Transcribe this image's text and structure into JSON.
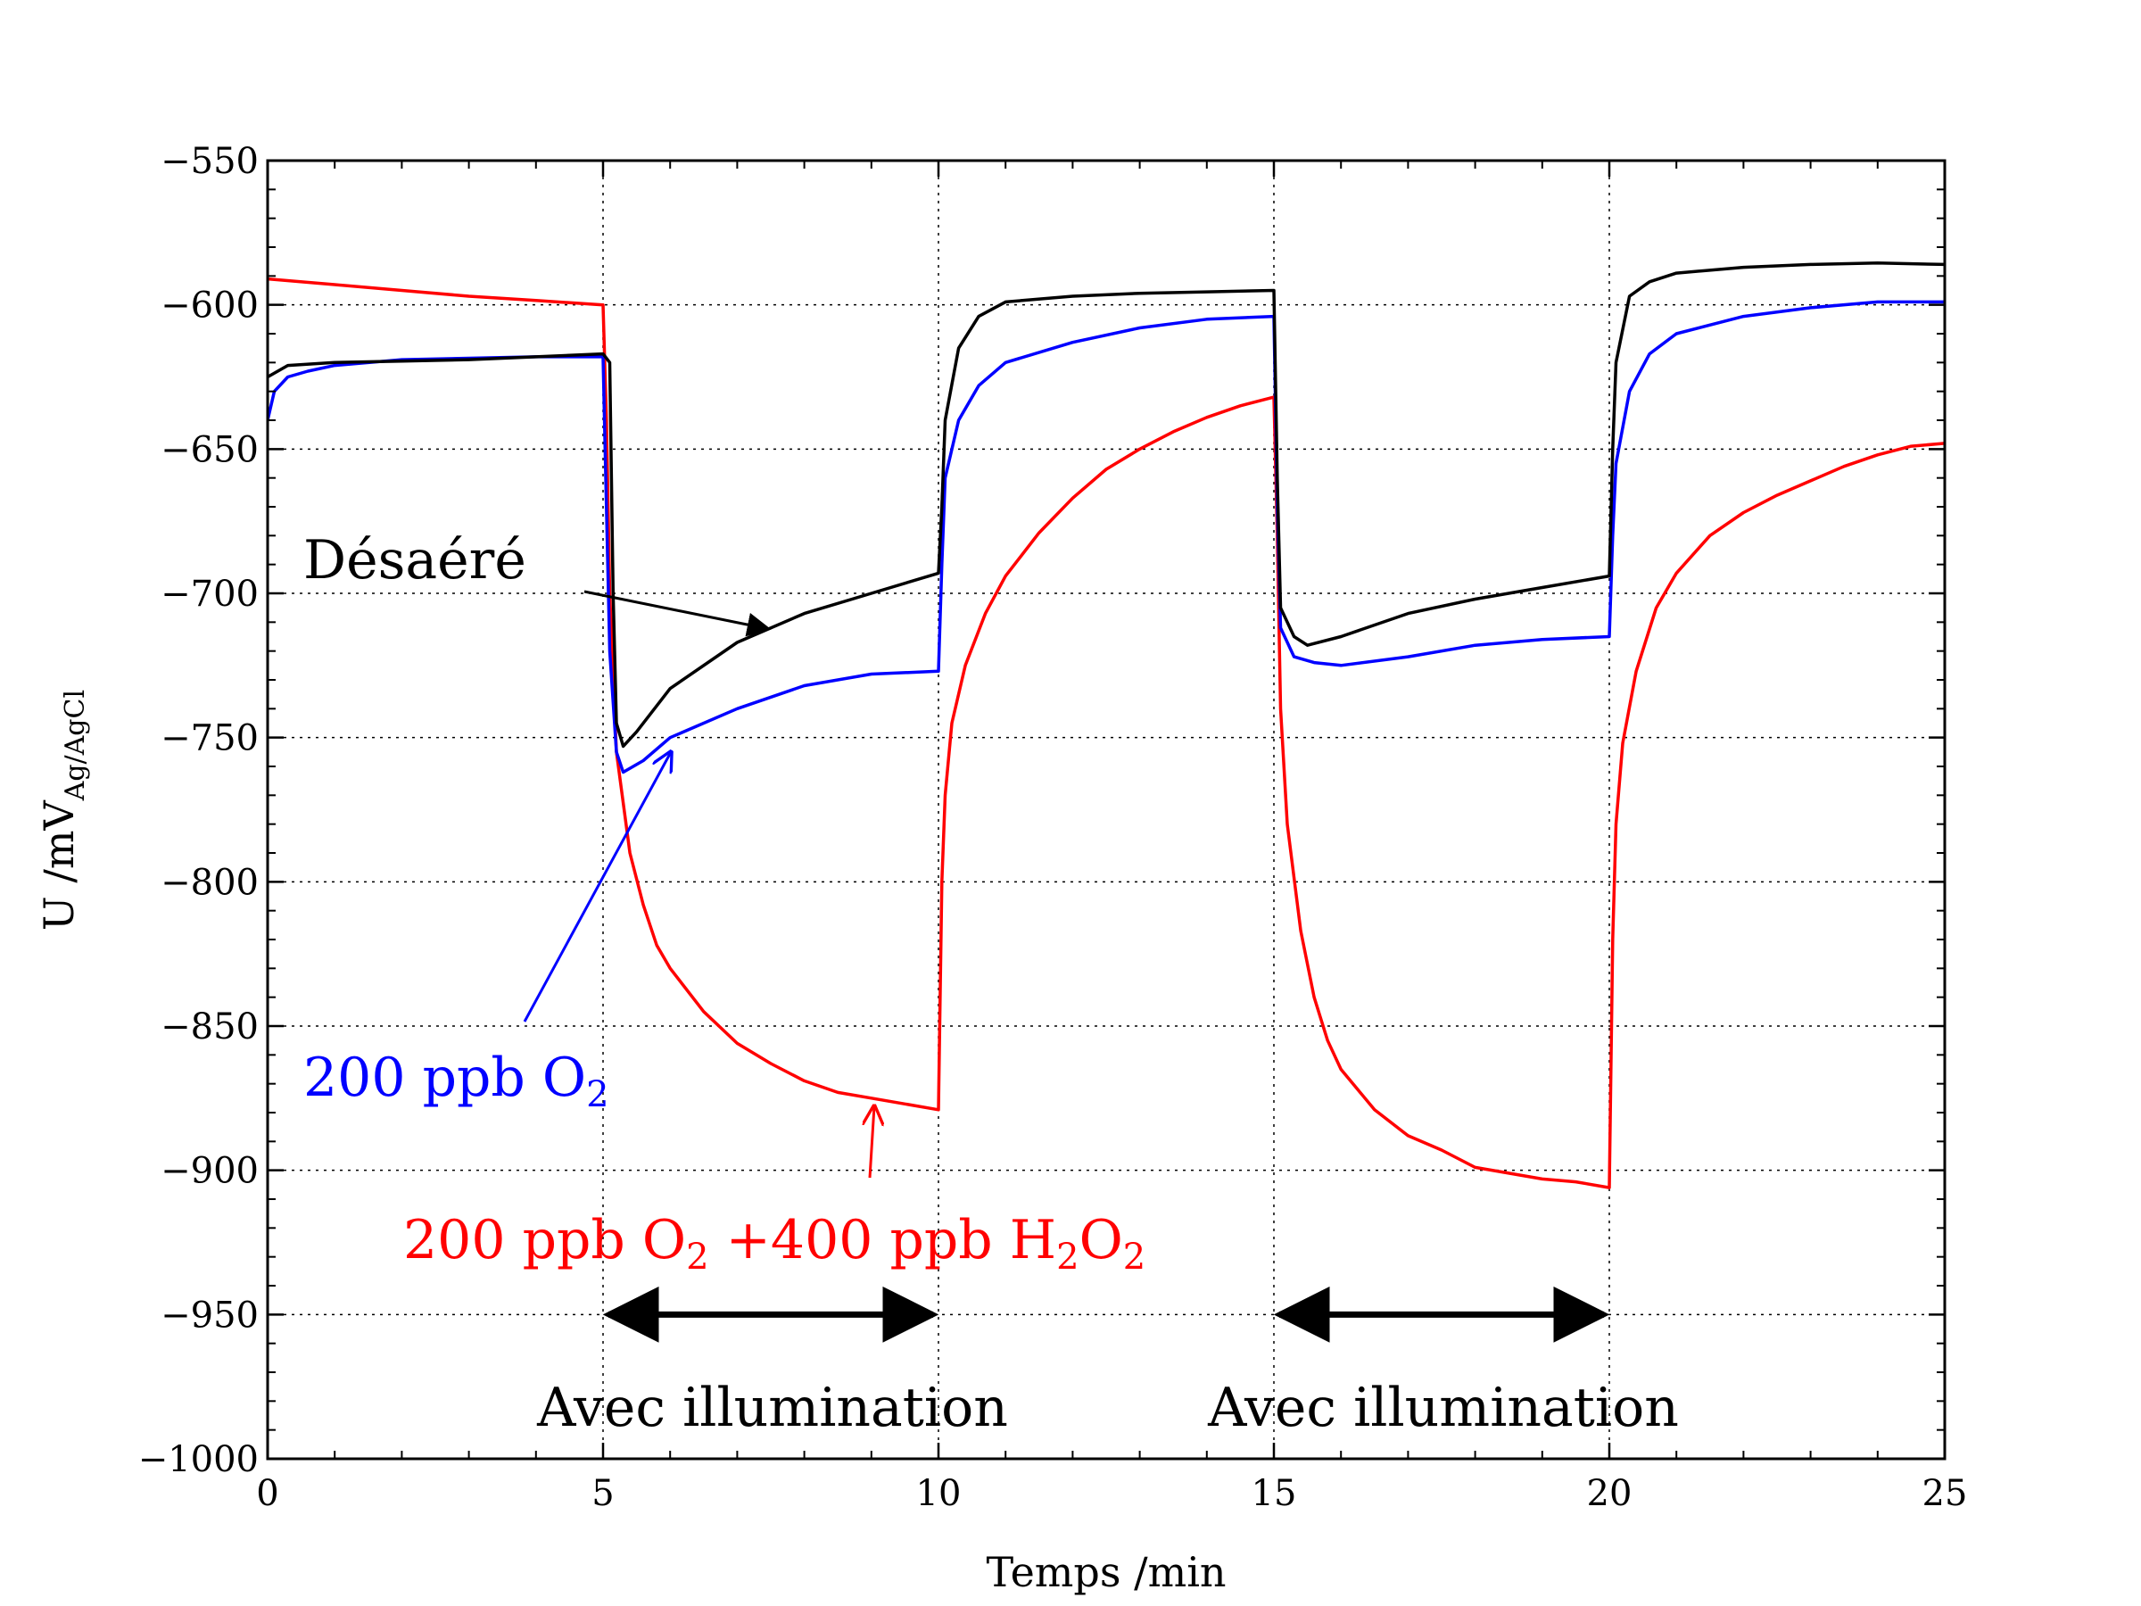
{
  "chart_data": {
    "type": "line",
    "xlabel": "Temps /min",
    "ylabel_main": "U /mV",
    "ylabel_sub": "Ag/AgCl",
    "xlim": [
      0,
      25
    ],
    "ylim": [
      -1000,
      -550
    ],
    "xticks": [
      0,
      5,
      10,
      15,
      20,
      25
    ],
    "xtick_labels": [
      "0",
      "5",
      "10",
      "15",
      "20",
      "25"
    ],
    "yticks": [
      -550,
      -600,
      -650,
      -700,
      -750,
      -800,
      -850,
      -900,
      -950,
      -1000
    ],
    "ytick_labels": [
      "−550",
      "−600",
      "−650",
      "−700",
      "−750",
      "−800",
      "−850",
      "−900",
      "−950",
      "−1000"
    ],
    "grid": true,
    "colors": {
      "desaere": "#000000",
      "o2": "#0000ff",
      "o2h2o2": "#ff0000",
      "arrow": "#000000"
    },
    "series": [
      {
        "name": "Désaéré",
        "color": "#000000",
        "x": [
          0,
          0.3,
          1,
          2,
          3,
          4,
          5,
          5.1,
          5.15,
          5.2,
          5.3,
          5.5,
          6,
          7,
          8,
          9,
          10,
          10.05,
          10.1,
          10.3,
          10.6,
          11,
          12,
          13,
          14,
          15,
          15.05,
          15.1,
          15.3,
          15.5,
          16,
          17,
          18,
          19,
          20,
          20.05,
          20.1,
          20.3,
          20.6,
          21,
          22,
          23,
          24,
          25
        ],
        "y": [
          -625,
          -621,
          -620,
          -619.5,
          -619,
          -618,
          -617,
          -620,
          -700,
          -745,
          -753,
          -748,
          -733,
          -717,
          -707,
          -700,
          -693,
          -670,
          -640,
          -615,
          -604,
          -599,
          -597,
          -596,
          -595.5,
          -595,
          -660,
          -705,
          -715,
          -718,
          -715,
          -707,
          -702,
          -698,
          -694,
          -650,
          -620,
          -597,
          -592,
          -589,
          -587,
          -586,
          -585.5,
          -586
        ]
      },
      {
        "name": "200 ppb O",
        "name_sub": "2",
        "color": "#0000ff",
        "x": [
          0,
          0.1,
          0.3,
          0.6,
          1,
          2,
          3,
          4,
          5,
          5.03,
          5.1,
          5.2,
          5.3,
          5.6,
          6,
          7,
          8,
          9,
          10,
          10.05,
          10.1,
          10.3,
          10.6,
          11,
          12,
          13,
          14,
          15,
          15.05,
          15.1,
          15.3,
          15.6,
          16,
          17,
          18,
          19,
          20,
          20.05,
          20.1,
          20.3,
          20.6,
          21,
          22,
          23,
          24,
          25
        ],
        "y": [
          -640,
          -630,
          -625,
          -623,
          -621,
          -619,
          -618.5,
          -618,
          -618,
          -650,
          -720,
          -755,
          -762,
          -758,
          -750,
          -740,
          -732,
          -728,
          -727,
          -690,
          -660,
          -640,
          -628,
          -620,
          -613,
          -608,
          -605,
          -604,
          -670,
          -712,
          -722,
          -724,
          -725,
          -722,
          -718,
          -716,
          -715,
          -680,
          -655,
          -630,
          -617,
          -610,
          -604,
          -601,
          -599,
          -599
        ]
      },
      {
        "name": "200 ppb O₂ +400 ppb H₂O₂",
        "color": "#ff0000",
        "x": [
          0,
          1,
          2,
          3,
          4,
          5,
          5.05,
          5.1,
          5.2,
          5.4,
          5.6,
          5.8,
          6,
          6.5,
          7,
          7.5,
          8,
          8.5,
          9,
          9.5,
          10,
          10.05,
          10.1,
          10.2,
          10.4,
          10.7,
          11,
          11.5,
          12,
          12.5,
          13,
          13.5,
          14,
          14.5,
          15,
          15.05,
          15.1,
          15.2,
          15.4,
          15.6,
          15.8,
          16,
          16.5,
          17,
          17.5,
          18,
          18.5,
          19,
          19.5,
          20,
          20.05,
          20.1,
          20.2,
          20.4,
          20.7,
          21,
          21.5,
          22,
          22.5,
          23,
          23.5,
          24,
          24.5,
          25
        ],
        "y": [
          -591,
          -593,
          -595,
          -597,
          -598.5,
          -600,
          -640,
          -700,
          -755,
          -790,
          -808,
          -822,
          -830,
          -845,
          -856,
          -863,
          -869,
          -873,
          -875,
          -877,
          -879,
          -800,
          -770,
          -745,
          -725,
          -707,
          -694,
          -679,
          -667,
          -657,
          -650,
          -644,
          -639,
          -635,
          -632,
          -680,
          -740,
          -780,
          -817,
          -840,
          -855,
          -865,
          -879,
          -888,
          -893,
          -899,
          -901,
          -903,
          -904,
          -906,
          -820,
          -780,
          -752,
          -727,
          -705,
          -693,
          -680,
          -672,
          -666,
          -661,
          -656,
          -652,
          -649,
          -648
        ]
      }
    ],
    "annotations": {
      "desaere_label": "Désaéré",
      "o2_label": "200 ppb O",
      "o2_label_sub": "2",
      "h2o2_label_a": "200 ppb O",
      "h2o2_label_sub1": "2",
      "h2o2_label_b": " +400 ppb H",
      "h2o2_label_sub2": "2",
      "h2o2_label_c": "O",
      "h2o2_label_sub3": "2",
      "illum_label_1": "Avec illumination",
      "illum_label_2": "Avec illumination",
      "illum_ranges": [
        [
          5,
          10
        ],
        [
          15,
          20
        ]
      ]
    }
  }
}
